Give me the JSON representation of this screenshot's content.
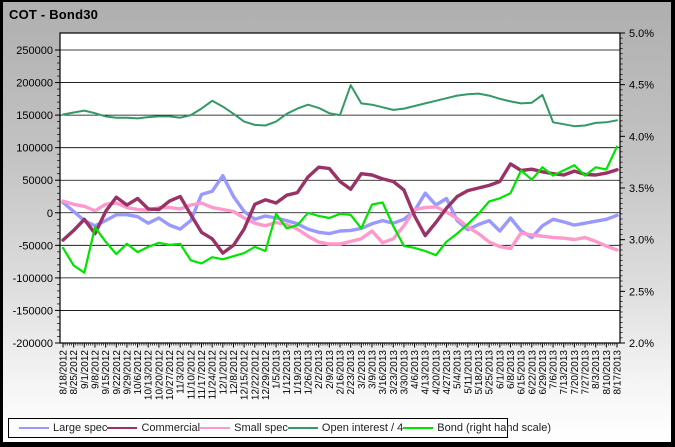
{
  "title": "COT - Bond30",
  "chart_data": {
    "type": "line",
    "title": "COT - Bond30",
    "grid": true,
    "legend_position": "bottom",
    "categories": [
      "8/18/2012",
      "8/25/2012",
      "9/1/2012",
      "9/8/2012",
      "9/15/2012",
      "9/22/2012",
      "9/29/2012",
      "10/6/2012",
      "10/13/2012",
      "10/20/2012",
      "10/27/2012",
      "11/3/2012",
      "11/10/2012",
      "11/17/2012",
      "11/24/2012",
      "12/1/2012",
      "12/8/2012",
      "12/15/2012",
      "12/22/2012",
      "12/29/2012",
      "1/5/2013",
      "1/12/2013",
      "1/19/2013",
      "1/26/2013",
      "2/2/2013",
      "2/9/2013",
      "2/16/2013",
      "2/23/2013",
      "3/2/2013",
      "3/9/2013",
      "3/16/2013",
      "3/23/2013",
      "3/30/2013",
      "4/6/2013",
      "4/13/2013",
      "4/20/2013",
      "4/27/2013",
      "5/4/2013",
      "5/11/2013",
      "5/18/2013",
      "5/25/2013",
      "6/1/2013",
      "6/8/2013",
      "6/15/2013",
      "6/22/2013",
      "6/29/2013",
      "7/6/2013",
      "7/13/2013",
      "7/20/2013",
      "7/27/2013",
      "8/3/2013",
      "8/10/2013",
      "8/17/2013"
    ],
    "left_axis": {
      "min": -200000,
      "max": 250000,
      "tick_step": 50000,
      "minor_step": 10000,
      "labels": [
        "250000",
        "200000",
        "150000",
        "100000",
        "50000",
        "0",
        "-50000",
        "-100000",
        "-150000",
        "-200000"
      ]
    },
    "right_axis": {
      "min": 2.0,
      "max": 5.0,
      "tick_step": 0.5,
      "minor_step": 0.05,
      "labels": [
        "5.0%",
        "4.5%",
        "4.0%",
        "3.5%",
        "3.0%",
        "2.5%",
        "2.0%"
      ]
    },
    "series": [
      {
        "name": "Large spec",
        "color": "#9999FF",
        "axis": "left",
        "width": 3.4,
        "values": [
          16000,
          2000,
          -12000,
          -20000,
          -12000,
          -3000,
          -3000,
          -6000,
          -16000,
          -8000,
          -19000,
          -25000,
          -12000,
          28000,
          33000,
          57000,
          25000,
          2000,
          -10000,
          -5000,
          -8000,
          -12000,
          -17000,
          -25000,
          -30000,
          -32000,
          -28000,
          -27000,
          -24000,
          -17000,
          -12000,
          -16000,
          -10000,
          3000,
          30000,
          12000,
          22000,
          -12000,
          -26000,
          -18000,
          -12000,
          -28000,
          -8000,
          -28000,
          -38000,
          -20000,
          -10000,
          -14000,
          -19000,
          -16000,
          -13000,
          -10000,
          -4000
        ]
      },
      {
        "name": "Small spec",
        "color": "#FF99CC",
        "axis": "left",
        "width": 3.4,
        "values": [
          18000,
          13000,
          10000,
          3000,
          13000,
          15000,
          8000,
          5000,
          4000,
          8000,
          8000,
          6000,
          12000,
          15000,
          8000,
          5000,
          2000,
          -8000,
          -16000,
          -20000,
          -15000,
          -18000,
          -25000,
          -36000,
          -45000,
          -48000,
          -48000,
          -44000,
          -40000,
          -28000,
          -46000,
          -40000,
          -20000,
          5000,
          8000,
          9000,
          1000,
          -9000,
          -22000,
          -32000,
          -45000,
          -52000,
          -55000,
          -31000,
          -34000,
          -36000,
          -38000,
          -39000,
          -41000,
          -38000,
          -44000,
          -51000,
          -57000
        ]
      },
      {
        "name": "Commercial",
        "color": "#993366",
        "axis": "left",
        "width": 3.4,
        "values": [
          -42000,
          -27000,
          -10000,
          -32000,
          2000,
          24000,
          12000,
          22000,
          6000,
          5000,
          18000,
          25000,
          -3000,
          -30000,
          -40000,
          -62000,
          -50000,
          -25000,
          13000,
          20000,
          15000,
          27000,
          31000,
          55000,
          70000,
          68000,
          48000,
          36000,
          60000,
          58000,
          52000,
          48000,
          35000,
          -5000,
          -35000,
          -15000,
          7000,
          25000,
          34000,
          38000,
          42000,
          48000,
          75000,
          65000,
          67000,
          63000,
          60000,
          58000,
          64000,
          59000,
          58000,
          61000,
          66000
        ]
      },
      {
        "name": "Open interest / 4",
        "color": "#339966",
        "axis": "left",
        "width": 2,
        "values": [
          151000,
          154000,
          157000,
          153000,
          148000,
          146000,
          146000,
          145000,
          147000,
          148000,
          148000,
          146000,
          150000,
          160000,
          172000,
          163000,
          152000,
          140000,
          135000,
          134000,
          140000,
          152000,
          160000,
          166000,
          161000,
          153000,
          150000,
          196000,
          168000,
          166000,
          162000,
          158000,
          160000,
          164000,
          168000,
          172000,
          176000,
          180000,
          182000,
          183000,
          180000,
          175000,
          171000,
          168000,
          169000,
          181000,
          139000,
          136000,
          133000,
          134000,
          138000,
          139000,
          142000
        ]
      },
      {
        "name": "Bond (right hand scale)",
        "color": "#00E400",
        "axis": "right",
        "width": 2.2,
        "values": [
          2.92,
          2.75,
          2.68,
          3.12,
          2.98,
          2.86,
          2.96,
          2.88,
          2.93,
          2.97,
          2.95,
          2.96,
          2.8,
          2.77,
          2.83,
          2.81,
          2.84,
          2.87,
          2.93,
          2.89,
          3.25,
          3.11,
          3.14,
          3.26,
          3.23,
          3.21,
          3.25,
          3.24,
          3.11,
          3.34,
          3.36,
          3.13,
          2.94,
          2.92,
          2.89,
          2.85,
          2.98,
          3.06,
          3.15,
          3.25,
          3.37,
          3.4,
          3.45,
          3.67,
          3.58,
          3.7,
          3.62,
          3.67,
          3.72,
          3.62,
          3.7,
          3.68,
          3.9
        ]
      }
    ],
    "legend_order": [
      "Large spec",
      "Commercial",
      "Small spec",
      "Open interest / 4",
      "Bond (right hand scale)"
    ]
  }
}
